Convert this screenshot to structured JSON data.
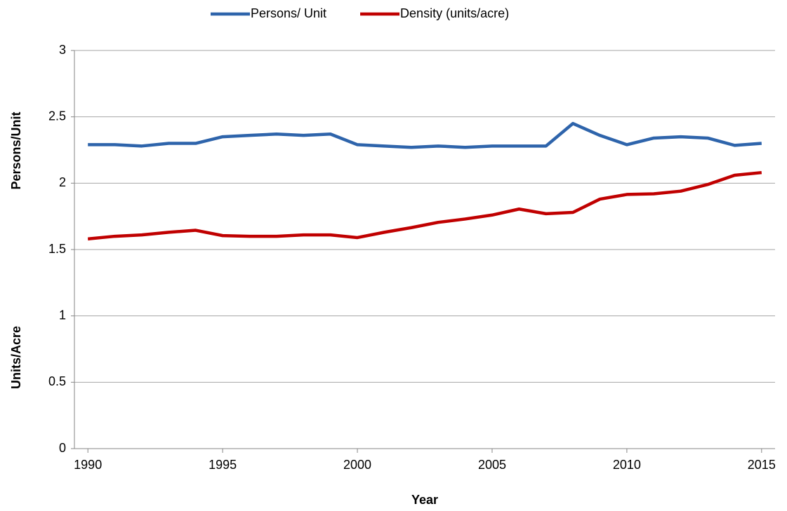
{
  "chart_data": {
    "type": "line",
    "y_label_top": "Persons/Unit",
    "y_label_bottom": "Units/Acre",
    "x_label": "Year",
    "x": [
      1990,
      1991,
      1992,
      1993,
      1994,
      1995,
      1996,
      1997,
      1998,
      1999,
      2000,
      2001,
      2002,
      2003,
      2004,
      2005,
      2006,
      2007,
      2008,
      2009,
      2010,
      2011,
      2012,
      2013,
      2014,
      2015
    ],
    "series": [
      {
        "name": "Persons/ Unit",
        "color": "#2e64ab",
        "values": [
          2.29,
          2.29,
          2.28,
          2.3,
          2.3,
          2.35,
          2.36,
          2.37,
          2.36,
          2.37,
          2.29,
          2.28,
          2.27,
          2.28,
          2.27,
          2.28,
          2.28,
          2.28,
          2.45,
          2.36,
          2.29,
          2.34,
          2.35,
          2.34,
          2.285,
          2.3
        ]
      },
      {
        "name": "Density (units/acre)",
        "color": "#c00000",
        "values": [
          1.58,
          1.6,
          1.61,
          1.63,
          1.645,
          1.605,
          1.6,
          1.6,
          1.61,
          1.61,
          1.59,
          1.63,
          1.665,
          1.705,
          1.73,
          1.76,
          1.805,
          1.77,
          1.78,
          1.88,
          1.915,
          1.92,
          1.94,
          1.99,
          2.06,
          2.08
        ]
      }
    ],
    "xlim": [
      1989.5,
      2015.5
    ],
    "xticks": [
      1990,
      1995,
      2000,
      2005,
      2010,
      2015
    ],
    "ylim": [
      0,
      3
    ],
    "yticks": [
      0,
      0.5,
      1,
      1.5,
      2,
      2.5,
      3
    ],
    "grid": true,
    "legend": "top"
  }
}
